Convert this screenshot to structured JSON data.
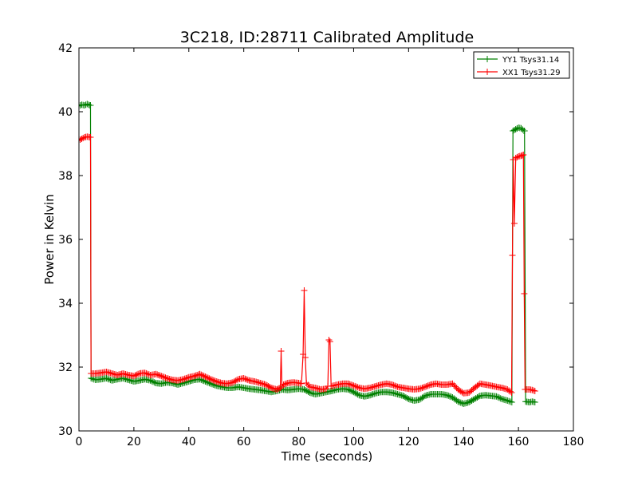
{
  "chart_data": {
    "type": "line",
    "title": "3C218, ID:28711 Calibrated Amplitude",
    "xlabel": "Time (seconds)",
    "ylabel": "Power in Kelvin",
    "xlim": [
      0,
      180
    ],
    "ylim": [
      30,
      42
    ],
    "xticks": [
      0,
      20,
      40,
      60,
      80,
      100,
      120,
      140,
      160,
      180
    ],
    "yticks": [
      30,
      32,
      34,
      36,
      38,
      40,
      42
    ],
    "grid": false,
    "legend_position": "top-right",
    "marker": "plus",
    "series": [
      {
        "name": "YY1 Tsys31.14",
        "color": "#008000",
        "points": [
          [
            0,
            40.18
          ],
          [
            1,
            40.22
          ],
          [
            2,
            40.2
          ],
          [
            3,
            40.24
          ],
          [
            4,
            40.2
          ],
          [
            4.2,
            40.2
          ],
          [
            4.4,
            31.65
          ],
          [
            6,
            31.6
          ],
          [
            8,
            31.62
          ],
          [
            10,
            31.65
          ],
          [
            12,
            31.58
          ],
          [
            14,
            31.62
          ],
          [
            16,
            31.65
          ],
          [
            18,
            31.6
          ],
          [
            20,
            31.55
          ],
          [
            22,
            31.58
          ],
          [
            24,
            31.62
          ],
          [
            26,
            31.58
          ],
          [
            28,
            31.5
          ],
          [
            30,
            31.48
          ],
          [
            32,
            31.52
          ],
          [
            34,
            31.5
          ],
          [
            36,
            31.45
          ],
          [
            38,
            31.5
          ],
          [
            40,
            31.55
          ],
          [
            42,
            31.6
          ],
          [
            44,
            31.62
          ],
          [
            46,
            31.55
          ],
          [
            48,
            31.48
          ],
          [
            50,
            31.42
          ],
          [
            52,
            31.38
          ],
          [
            54,
            31.35
          ],
          [
            56,
            31.35
          ],
          [
            58,
            31.38
          ],
          [
            60,
            31.35
          ],
          [
            62,
            31.32
          ],
          [
            64,
            31.3
          ],
          [
            66,
            31.28
          ],
          [
            68,
            31.25
          ],
          [
            70,
            31.22
          ],
          [
            72,
            31.25
          ],
          [
            74,
            31.3
          ],
          [
            76,
            31.28
          ],
          [
            78,
            31.3
          ],
          [
            80,
            31.32
          ],
          [
            82,
            31.3
          ],
          [
            84,
            31.2
          ],
          [
            86,
            31.15
          ],
          [
            88,
            31.18
          ],
          [
            90,
            31.22
          ],
          [
            92,
            31.25
          ],
          [
            94,
            31.3
          ],
          [
            96,
            31.32
          ],
          [
            98,
            31.3
          ],
          [
            100,
            31.22
          ],
          [
            102,
            31.12
          ],
          [
            104,
            31.08
          ],
          [
            106,
            31.12
          ],
          [
            108,
            31.18
          ],
          [
            110,
            31.22
          ],
          [
            112,
            31.22
          ],
          [
            114,
            31.2
          ],
          [
            116,
            31.15
          ],
          [
            118,
            31.1
          ],
          [
            120,
            31.0
          ],
          [
            122,
            30.95
          ],
          [
            124,
            30.98
          ],
          [
            126,
            31.1
          ],
          [
            128,
            31.15
          ],
          [
            130,
            31.15
          ],
          [
            132,
            31.15
          ],
          [
            134,
            31.12
          ],
          [
            136,
            31.05
          ],
          [
            138,
            30.92
          ],
          [
            140,
            30.85
          ],
          [
            142,
            30.9
          ],
          [
            144,
            31.0
          ],
          [
            146,
            31.1
          ],
          [
            148,
            31.12
          ],
          [
            150,
            31.1
          ],
          [
            152,
            31.08
          ],
          [
            154,
            31.0
          ],
          [
            156,
            30.95
          ],
          [
            157.6,
            30.9
          ],
          [
            158,
            39.4
          ],
          [
            159,
            39.45
          ],
          [
            160,
            39.5
          ],
          [
            161,
            39.48
          ],
          [
            162,
            39.4
          ],
          [
            162.2,
            39.4
          ],
          [
            162.6,
            30.92
          ],
          [
            164,
            30.9
          ],
          [
            165,
            30.92
          ],
          [
            166,
            30.9
          ]
        ]
      },
      {
        "name": "XX1 Tsys31.29",
        "color": "#ff0000",
        "points": [
          [
            0,
            39.1
          ],
          [
            1,
            39.15
          ],
          [
            2,
            39.2
          ],
          [
            3,
            39.22
          ],
          [
            4,
            39.2
          ],
          [
            4.2,
            39.2
          ],
          [
            4.4,
            31.8
          ],
          [
            6,
            31.8
          ],
          [
            8,
            31.82
          ],
          [
            10,
            31.85
          ],
          [
            12,
            31.8
          ],
          [
            14,
            31.75
          ],
          [
            16,
            31.8
          ],
          [
            18,
            31.75
          ],
          [
            20,
            31.72
          ],
          [
            22,
            31.8
          ],
          [
            24,
            31.82
          ],
          [
            26,
            31.75
          ],
          [
            28,
            31.78
          ],
          [
            30,
            31.72
          ],
          [
            32,
            31.65
          ],
          [
            34,
            31.6
          ],
          [
            36,
            31.58
          ],
          [
            38,
            31.62
          ],
          [
            40,
            31.68
          ],
          [
            42,
            31.72
          ],
          [
            44,
            31.78
          ],
          [
            46,
            31.7
          ],
          [
            48,
            31.62
          ],
          [
            50,
            31.55
          ],
          [
            52,
            31.5
          ],
          [
            54,
            31.48
          ],
          [
            56,
            31.52
          ],
          [
            58,
            31.62
          ],
          [
            60,
            31.65
          ],
          [
            62,
            31.58
          ],
          [
            64,
            31.55
          ],
          [
            66,
            31.5
          ],
          [
            68,
            31.45
          ],
          [
            70,
            31.35
          ],
          [
            72,
            31.3
          ],
          [
            73.3,
            31.35
          ],
          [
            73.6,
            32.5
          ],
          [
            73.9,
            31.4
          ],
          [
            74.5,
            31.45
          ],
          [
            76,
            31.5
          ],
          [
            78,
            31.52
          ],
          [
            80,
            31.5
          ],
          [
            81,
            31.48
          ],
          [
            81.6,
            32.4
          ],
          [
            82,
            34.4
          ],
          [
            82.4,
            32.3
          ],
          [
            82.8,
            31.5
          ],
          [
            84,
            31.38
          ],
          [
            86,
            31.35
          ],
          [
            88,
            31.3
          ],
          [
            90,
            31.32
          ],
          [
            90.6,
            31.4
          ],
          [
            91,
            32.85
          ],
          [
            91.4,
            32.8
          ],
          [
            91.8,
            31.4
          ],
          [
            94,
            31.45
          ],
          [
            96,
            31.48
          ],
          [
            98,
            31.48
          ],
          [
            100,
            31.42
          ],
          [
            102,
            31.35
          ],
          [
            104,
            31.32
          ],
          [
            106,
            31.35
          ],
          [
            108,
            31.4
          ],
          [
            110,
            31.45
          ],
          [
            112,
            31.48
          ],
          [
            114,
            31.45
          ],
          [
            116,
            31.38
          ],
          [
            118,
            31.35
          ],
          [
            120,
            31.32
          ],
          [
            122,
            31.3
          ],
          [
            124,
            31.32
          ],
          [
            126,
            31.38
          ],
          [
            128,
            31.45
          ],
          [
            130,
            31.48
          ],
          [
            132,
            31.45
          ],
          [
            134,
            31.45
          ],
          [
            136,
            31.48
          ],
          [
            138,
            31.3
          ],
          [
            140,
            31.18
          ],
          [
            142,
            31.2
          ],
          [
            144,
            31.35
          ],
          [
            146,
            31.48
          ],
          [
            148,
            31.45
          ],
          [
            150,
            31.42
          ],
          [
            152,
            31.38
          ],
          [
            154,
            31.35
          ],
          [
            156,
            31.3
          ],
          [
            157.5,
            31.2
          ],
          [
            157.8,
            35.5
          ],
          [
            158.1,
            38.5
          ],
          [
            158.5,
            36.5
          ],
          [
            159,
            38.55
          ],
          [
            160,
            38.6
          ],
          [
            161,
            38.62
          ],
          [
            161.8,
            38.65
          ],
          [
            162.1,
            34.3
          ],
          [
            162.4,
            31.3
          ],
          [
            164,
            31.3
          ],
          [
            165,
            31.28
          ],
          [
            166,
            31.25
          ]
        ]
      }
    ]
  }
}
